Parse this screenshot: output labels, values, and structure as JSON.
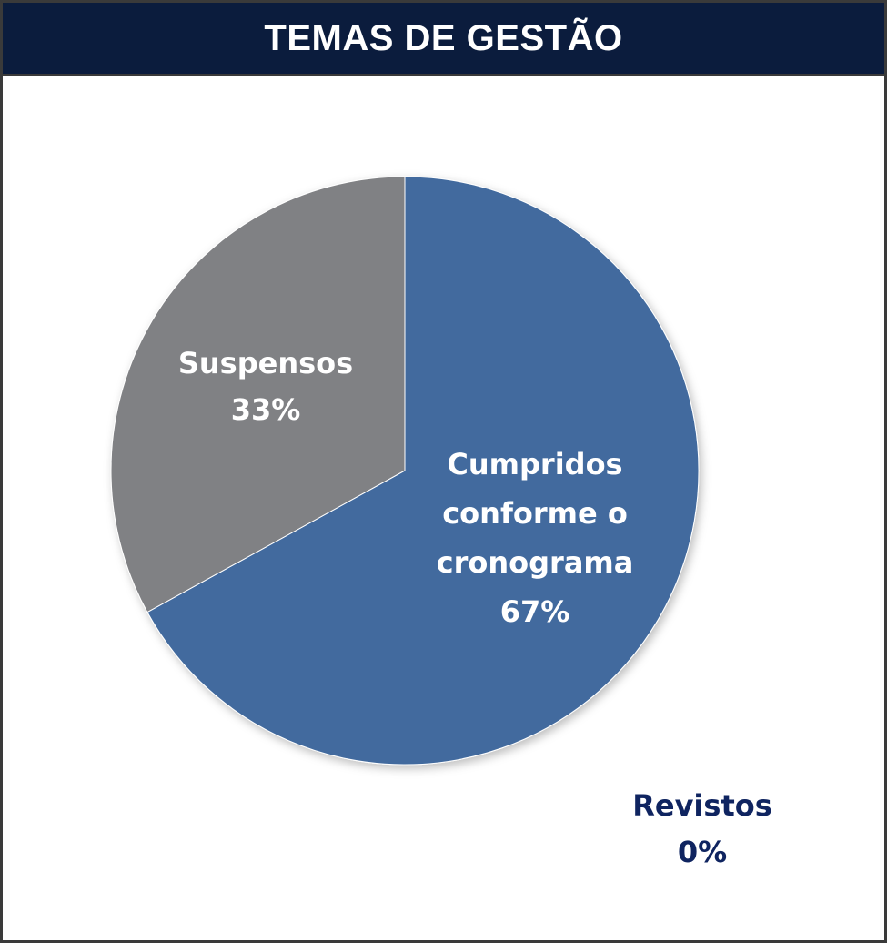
{
  "chart_data": {
    "type": "pie",
    "title": "TEMAS DE GESTÃO",
    "slices": [
      {
        "label": "Cumpridos conforme o cronograma",
        "value": 67,
        "display": "67%",
        "color": "#426b9e",
        "lines": [
          "Cumpridos",
          "conforme o",
          "cronograma"
        ]
      },
      {
        "label": "Suspensos",
        "value": 33,
        "display": "33%",
        "color": "#808184",
        "lines": [
          "Suspensos"
        ]
      },
      {
        "label": "Revistos",
        "value": 0,
        "display": "0%",
        "color": "#0f2460",
        "lines": [
          "Revistos"
        ]
      }
    ]
  },
  "colors": {
    "header_bg": "#0b1c3d",
    "header_text": "#ffffff",
    "outer_label": "#0f2460"
  }
}
